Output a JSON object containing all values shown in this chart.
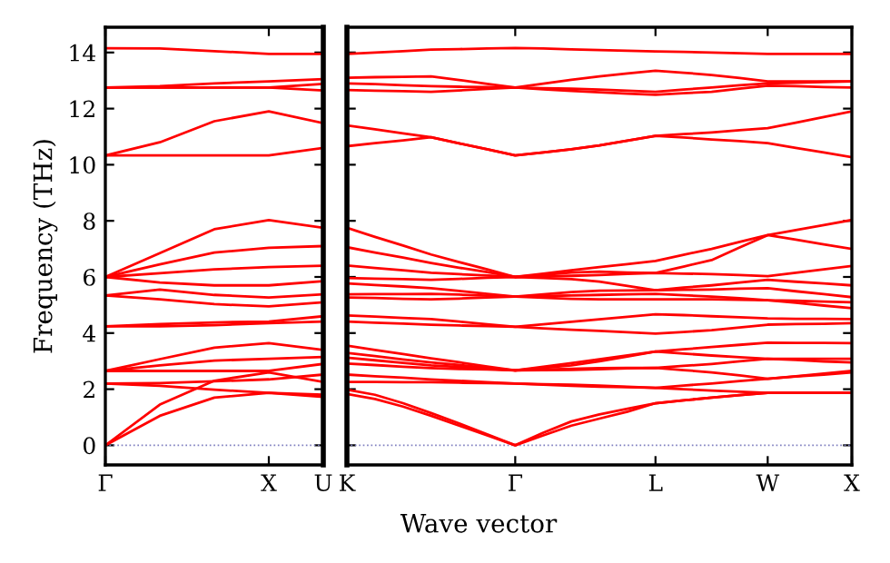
{
  "chart_data": [
    {
      "type": "line",
      "ylabel": "Frequency (THz)",
      "categories": [
        "Γ",
        null,
        null,
        "X",
        "U"
      ],
      "ylim": [
        -0.7,
        14.9
      ],
      "yticks": [
        0,
        2,
        4,
        6,
        8,
        10,
        12,
        14
      ],
      "grid": false,
      "legend": false,
      "marker": "none",
      "line_style": "solid",
      "ref_lines": [
        {
          "axis": "y",
          "value": 0,
          "color": "#8080c0",
          "line_style": "dotted"
        }
      ],
      "series": [
        {
          "color": "#ff0000",
          "values": [
            14.15,
            14.14,
            14.05,
            13.95,
            13.95
          ]
        },
        {
          "color": "#ff0000",
          "values": [
            12.75,
            12.8,
            12.9,
            12.97,
            13.05
          ]
        },
        {
          "color": "#ff0000",
          "values": [
            12.75,
            12.75,
            12.75,
            12.75,
            12.65
          ]
        },
        {
          "color": "#ff0000",
          "values": [
            12.75,
            12.75,
            12.75,
            12.75,
            12.88
          ]
        },
        {
          "color": "#ff0000",
          "values": [
            10.33,
            10.8,
            11.55,
            11.9,
            11.48
          ]
        },
        {
          "color": "#ff0000",
          "values": [
            10.33,
            10.33,
            10.33,
            10.33,
            10.6
          ]
        },
        {
          "color": "#ff0000",
          "values": [
            6.0,
            6.85,
            7.7,
            8.03,
            7.75
          ]
        },
        {
          "color": "#ff0000",
          "values": [
            6.0,
            6.45,
            6.87,
            7.04,
            7.1
          ]
        },
        {
          "color": "#ff0000",
          "values": [
            6.0,
            6.13,
            6.27,
            6.35,
            6.4
          ]
        },
        {
          "color": "#ff0000",
          "values": [
            6.0,
            5.8,
            5.7,
            5.7,
            5.85
          ]
        },
        {
          "color": "#ff0000",
          "values": [
            5.34,
            5.55,
            5.36,
            5.27,
            5.38
          ]
        },
        {
          "color": "#ff0000",
          "values": [
            5.34,
            5.2,
            5.03,
            4.95,
            5.1
          ]
        },
        {
          "color": "#ff0000",
          "values": [
            4.24,
            4.32,
            4.38,
            4.41,
            4.6
          ]
        },
        {
          "color": "#ff0000",
          "values": [
            4.24,
            4.24,
            4.28,
            4.35,
            4.41
          ]
        },
        {
          "color": "#ff0000",
          "values": [
            2.65,
            3.07,
            3.48,
            3.64,
            3.4
          ]
        },
        {
          "color": "#ff0000",
          "values": [
            2.65,
            2.85,
            3.02,
            3.08,
            3.15
          ]
        },
        {
          "color": "#ff0000",
          "values": [
            2.65,
            2.65,
            2.65,
            2.65,
            2.9
          ]
        },
        {
          "color": "#ff0000",
          "values": [
            2.2,
            2.12,
            1.98,
            1.87,
            1.8
          ]
        },
        {
          "color": "#ff0000",
          "values": [
            2.2,
            2.22,
            2.28,
            2.35,
            2.52
          ]
        },
        {
          "color": "#ff0000",
          "values": [
            0,
            1.05,
            1.7,
            1.87,
            1.72
          ]
        },
        {
          "color": "#ff0000",
          "values": [
            0,
            1.45,
            2.3,
            2.6,
            2.26
          ]
        }
      ]
    },
    {
      "type": "line",
      "xlabel": "Wave vector",
      "categories": [
        "K",
        null,
        null,
        null,
        null,
        null,
        "Γ",
        null,
        null,
        null,
        null,
        "L",
        null,
        null,
        null,
        "W",
        null,
        null,
        "X"
      ],
      "ylim": [
        -0.7,
        14.9
      ],
      "yticks": [
        0,
        2,
        4,
        6,
        8,
        10,
        12,
        14
      ],
      "tick_labels": "x",
      "grid": false,
      "legend": false,
      "marker": "none",
      "line_style": "solid",
      "ref_lines": [
        {
          "axis": "y",
          "value": 0,
          "color": "#8080c0",
          "line_style": "dotted"
        }
      ],
      "series": [
        {
          "color": "#ff0000",
          "values": [
            13.95,
            14.0,
            14.05,
            14.1,
            14.12,
            14.14,
            14.16,
            14.14,
            14.11,
            14.09,
            14.06,
            14.04,
            14.02,
            14.0,
            13.97,
            13.95,
            13.95,
            13.95,
            13.95
          ]
        },
        {
          "color": "#ff0000",
          "values": [
            13.1,
            13.12,
            13.13,
            13.15,
            13.02,
            12.88,
            12.75,
            12.89,
            13.03,
            13.15,
            13.25,
            13.35,
            13.28,
            13.2,
            13.09,
            12.97,
            12.97,
            12.97,
            12.97
          ]
        },
        {
          "color": "#ff0000",
          "values": [
            12.9,
            12.87,
            12.83,
            12.8,
            12.78,
            12.77,
            12.75,
            12.69,
            12.63,
            12.58,
            12.53,
            12.49,
            12.55,
            12.6,
            12.71,
            12.82,
            12.8,
            12.77,
            12.75
          ]
        },
        {
          "color": "#ff0000",
          "values": [
            12.66,
            12.64,
            12.62,
            12.6,
            12.65,
            12.7,
            12.75,
            12.73,
            12.71,
            12.68,
            12.64,
            12.6,
            12.68,
            12.75,
            12.83,
            12.9,
            12.92,
            12.95,
            12.97
          ]
        },
        {
          "color": "#ff0000",
          "values": [
            11.4,
            11.26,
            11.12,
            10.98,
            10.76,
            10.55,
            10.33,
            10.44,
            10.55,
            10.69,
            10.86,
            11.03,
            11.09,
            11.15,
            11.23,
            11.3,
            11.5,
            11.7,
            11.9
          ]
        },
        {
          "color": "#ff0000",
          "values": [
            10.66,
            10.77,
            10.87,
            10.98,
            10.76,
            10.55,
            10.33,
            10.44,
            10.55,
            10.69,
            10.86,
            11.03,
            10.97,
            10.9,
            10.84,
            10.77,
            10.6,
            10.44,
            10.27
          ]
        },
        {
          "color": "#ff0000",
          "values": [
            7.75,
            7.43,
            7.12,
            6.8,
            6.53,
            6.27,
            6.0,
            6.12,
            6.24,
            6.35,
            6.46,
            6.57,
            6.79,
            7.0,
            7.25,
            7.49,
            7.67,
            7.85,
            8.03
          ]
        },
        {
          "color": "#ff0000",
          "values": [
            7.06,
            6.87,
            6.69,
            6.5,
            6.33,
            6.17,
            6.0,
            6.08,
            6.16,
            6.19,
            6.16,
            6.14,
            6.37,
            6.6,
            7.05,
            7.49,
            7.33,
            7.16,
            7.0
          ]
        },
        {
          "color": "#ff0000",
          "values": [
            6.41,
            6.32,
            6.24,
            6.15,
            6.1,
            6.05,
            6.0,
            6.02,
            6.04,
            6.07,
            6.11,
            6.14,
            6.12,
            6.1,
            6.07,
            6.03,
            6.15,
            6.27,
            6.39
          ]
        },
        {
          "color": "#ff0000",
          "values": [
            5.96,
            5.94,
            5.92,
            5.9,
            5.93,
            5.97,
            6.0,
            5.96,
            5.92,
            5.83,
            5.68,
            5.53,
            5.62,
            5.7,
            5.8,
            5.9,
            5.83,
            5.77,
            5.7
          ]
        },
        {
          "color": "#ff0000",
          "values": [
            5.77,
            5.71,
            5.66,
            5.6,
            5.5,
            5.4,
            5.3,
            5.38,
            5.46,
            5.51,
            5.52,
            5.53,
            5.54,
            5.55,
            5.58,
            5.6,
            5.49,
            5.39,
            5.28
          ]
        },
        {
          "color": "#ff0000",
          "values": [
            5.38,
            5.39,
            5.39,
            5.4,
            5.37,
            5.33,
            5.3,
            5.26,
            5.22,
            5.2,
            5.2,
            5.2,
            5.2,
            5.2,
            5.19,
            5.17,
            5.08,
            4.98,
            4.89
          ]
        },
        {
          "color": "#ff0000",
          "values": [
            5.27,
            5.25,
            5.22,
            5.2,
            5.23,
            5.27,
            5.3,
            5.32,
            5.34,
            5.36,
            5.38,
            5.4,
            5.35,
            5.3,
            5.24,
            5.17,
            5.15,
            5.12,
            5.1
          ]
        },
        {
          "color": "#ff0000",
          "values": [
            4.63,
            4.59,
            4.54,
            4.5,
            4.41,
            4.31,
            4.22,
            4.31,
            4.4,
            4.49,
            4.58,
            4.67,
            4.64,
            4.6,
            4.56,
            4.52,
            4.51,
            4.51,
            4.5
          ]
        },
        {
          "color": "#ff0000",
          "values": [
            4.41,
            4.37,
            4.34,
            4.3,
            4.27,
            4.25,
            4.22,
            4.17,
            4.12,
            4.08,
            4.03,
            3.98,
            4.04,
            4.1,
            4.2,
            4.3,
            4.32,
            4.33,
            4.35
          ]
        },
        {
          "color": "#ff0000",
          "values": [
            3.55,
            3.4,
            3.25,
            3.1,
            2.96,
            2.81,
            2.67,
            2.8,
            2.93,
            3.07,
            3.2,
            3.34,
            3.42,
            3.5,
            3.58,
            3.66,
            3.65,
            3.65,
            3.64
          ]
        },
        {
          "color": "#ff0000",
          "values": [
            3.29,
            3.18,
            3.06,
            2.95,
            2.86,
            2.76,
            2.67,
            2.76,
            2.85,
            2.99,
            3.16,
            3.34,
            3.27,
            3.2,
            3.14,
            3.08,
            3.08,
            3.08,
            3.08
          ]
        },
        {
          "color": "#ff0000",
          "values": [
            3.12,
            3.03,
            2.94,
            2.85,
            2.79,
            2.73,
            2.67,
            2.7,
            2.73,
            2.75,
            2.76,
            2.76,
            2.83,
            2.9,
            2.99,
            3.08,
            3.04,
            2.99,
            2.95
          ]
        },
        {
          "color": "#ff0000",
          "values": [
            2.91,
            2.86,
            2.8,
            2.75,
            2.72,
            2.7,
            2.67,
            2.68,
            2.69,
            2.71,
            2.74,
            2.76,
            2.68,
            2.6,
            2.49,
            2.37,
            2.46,
            2.56,
            2.65
          ]
        },
        {
          "color": "#ff0000",
          "values": [
            2.52,
            2.46,
            2.41,
            2.35,
            2.3,
            2.25,
            2.2,
            2.18,
            2.16,
            2.13,
            2.09,
            2.05,
            2.13,
            2.2,
            2.29,
            2.37,
            2.45,
            2.52,
            2.6
          ]
        },
        {
          "color": "#ff0000",
          "values": [
            2.26,
            2.26,
            2.25,
            2.25,
            2.23,
            2.22,
            2.2,
            2.16,
            2.12,
            2.09,
            2.07,
            2.05,
            2.0,
            1.95,
            1.91,
            1.87,
            1.87,
            1.87,
            1.87
          ]
        },
        {
          "color": "#ff0000",
          "values": [
            1.98,
            1.8,
            1.5,
            1.15,
            0.78,
            0.39,
            0,
            0.45,
            0.85,
            1.1,
            1.3,
            1.5,
            1.6,
            1.7,
            1.79,
            1.87,
            1.87,
            1.87,
            1.87
          ]
        },
        {
          "color": "#ff0000",
          "values": [
            1.83,
            1.65,
            1.38,
            1.05,
            0.7,
            0.35,
            0,
            0.35,
            0.7,
            0.95,
            1.2,
            1.5,
            1.6,
            1.7,
            1.79,
            1.87,
            1.87,
            1.87,
            1.87
          ]
        }
      ]
    }
  ]
}
